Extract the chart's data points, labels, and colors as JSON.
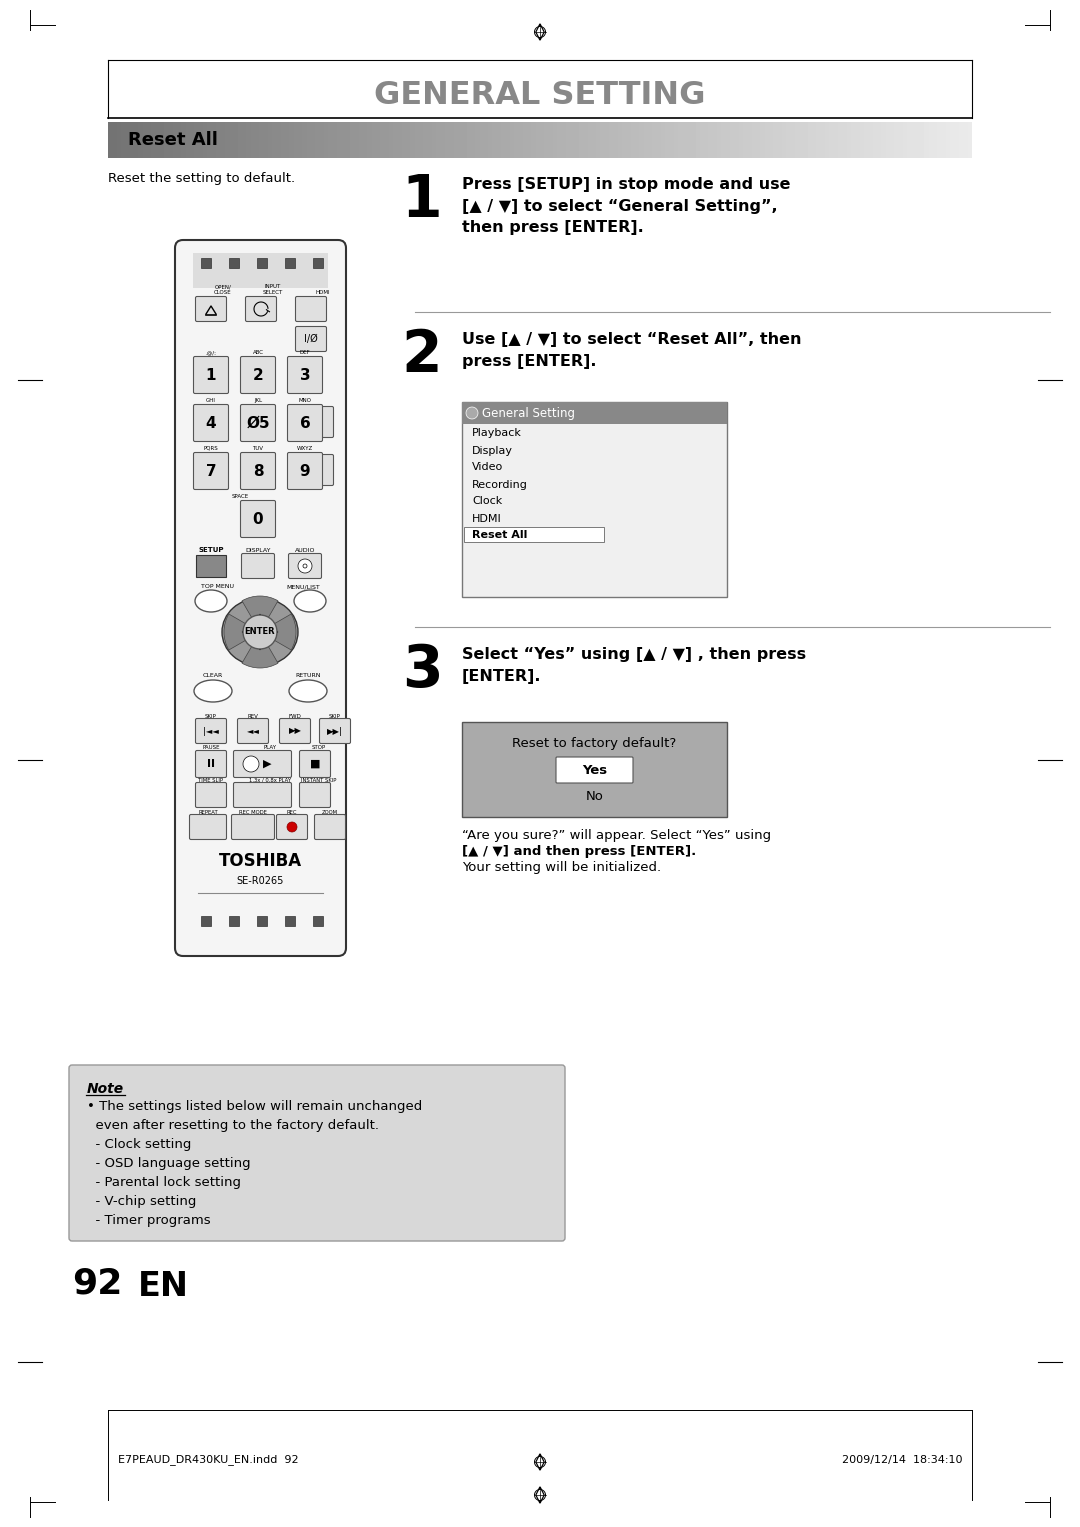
{
  "title": "GENERAL SETTING",
  "section_title": "Reset All",
  "section_subtitle": "Reset the setting to default.",
  "step1_num": "1",
  "step1_text_bold": "Press [SETUP] in stop mode and use\n[▲ / ▼] to select “General Setting”,\nthen press [ENTER].",
  "step2_num": "2",
  "step2_text_bold": "Use [▲ / ▼] to select “Reset All”, then\npress [ENTER].",
  "step3_num": "3",
  "step3_text_bold": "Select “Yes” using [▲ / ▼] , then press\n[ENTER].",
  "step3_sub1": "“Are you sure?” will appear. Select “Yes” using",
  "step3_sub2_bold": "[▲ / ▼]",
  "step3_sub3": " and then press ",
  "step3_sub4_bold": "[ENTER]",
  "step3_sub5": ".",
  "step3_sub6": "Your setting will be initialized.",
  "menu_title": "General Setting",
  "menu_items": [
    "Playback",
    "Display",
    "Video",
    "Recording",
    "Clock",
    "HDMI",
    "Reset All"
  ],
  "menu_selected": "Reset All",
  "dialog_title": "Reset to factory default?",
  "dialog_yes": "Yes",
  "dialog_no": "No",
  "note_title": "Note",
  "note_line1": "• The settings listed below will remain unchanged",
  "note_line2": "  even after resetting to the factory default.",
  "note_line3": "  - Clock setting",
  "note_line4": "  - OSD language setting",
  "note_line5": "  - Parental lock setting",
  "note_line6": "  - V-chip setting",
  "note_line7": "  - Timer programs",
  "footer_left": "E7PEAUD_DR430KU_EN.indd  92",
  "footer_right": "2009/12/14  18:34:10",
  "page_num": "92",
  "page_lang": "EN",
  "bg_color": "#ffffff",
  "title_gray": "#888888",
  "bar_dark": "#777777",
  "bar_light": "#cccccc",
  "remote_body": "#f5f5f5",
  "remote_edge": "#333333",
  "btn_face": "#e8e8e8",
  "btn_dark": "#aaaaaa",
  "nav_dark": "#999999",
  "note_bg": "#d8d8d8",
  "menu_header_bg": "#888888",
  "dlg_bg": "#aaaaaa"
}
